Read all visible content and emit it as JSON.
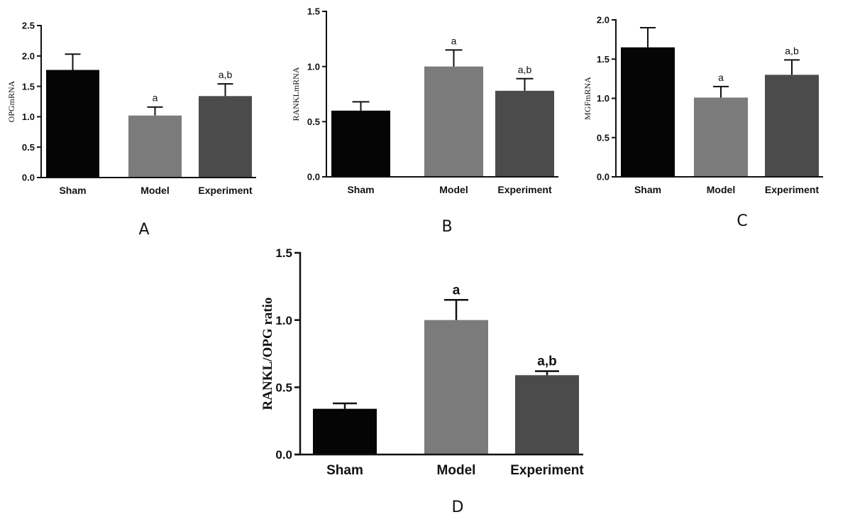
{
  "colors": {
    "Sham": "#050505",
    "Model": "#7b7b7b",
    "Experiment": "#4b4b4b",
    "axis": "#111111"
  },
  "chart_data": [
    {
      "panel_label": "A",
      "type": "bar",
      "title": "",
      "xlabel": "",
      "ylabel": "OPGmRNA",
      "categories": [
        "Sham",
        "Model",
        "Experiment"
      ],
      "values": [
        1.77,
        1.02,
        1.34
      ],
      "errors": [
        0.26,
        0.14,
        0.2
      ],
      "annotations": [
        "",
        "a",
        "a,b"
      ],
      "ylim": [
        0,
        2.5
      ],
      "yticks": [
        "0.0",
        "0.5",
        "1.0",
        "1.5",
        "2.0",
        "2.5"
      ],
      "grid": false
    },
    {
      "panel_label": "B",
      "type": "bar",
      "title": "",
      "xlabel": "",
      "ylabel": "RANKLmRNA",
      "categories": [
        "Sham",
        "Model",
        "Experiment"
      ],
      "values": [
        0.6,
        1.0,
        0.78
      ],
      "errors": [
        0.08,
        0.15,
        0.11
      ],
      "annotations": [
        "",
        "a",
        "a,b"
      ],
      "ylim": [
        0,
        1.5
      ],
      "yticks": [
        "0.0",
        "0.5",
        "1.0",
        "1.5"
      ],
      "grid": false
    },
    {
      "panel_label": "C",
      "type": "bar",
      "title": "",
      "xlabel": "",
      "ylabel": "MGFmRNA",
      "categories": [
        "Sham",
        "Model",
        "Experiment"
      ],
      "values": [
        1.65,
        1.01,
        1.3
      ],
      "errors": [
        0.25,
        0.14,
        0.19
      ],
      "annotations": [
        "",
        "a",
        "a,b"
      ],
      "ylim": [
        0,
        2.0
      ],
      "yticks": [
        "0.0",
        "0.5",
        "1.0",
        "1.5",
        "2.0"
      ],
      "grid": false
    },
    {
      "panel_label": "D",
      "type": "bar",
      "title": "",
      "xlabel": "",
      "ylabel": "RANKL/OPG ratio",
      "categories": [
        "Sham",
        "Model",
        "Experiment"
      ],
      "values": [
        0.34,
        1.0,
        0.59
      ],
      "errors": [
        0.04,
        0.15,
        0.03
      ],
      "annotations": [
        "",
        "a",
        "a,b"
      ],
      "ylim": [
        0,
        1.5
      ],
      "yticks": [
        "0.0",
        "0.5",
        "1.0",
        "1.5"
      ],
      "grid": false
    }
  ]
}
